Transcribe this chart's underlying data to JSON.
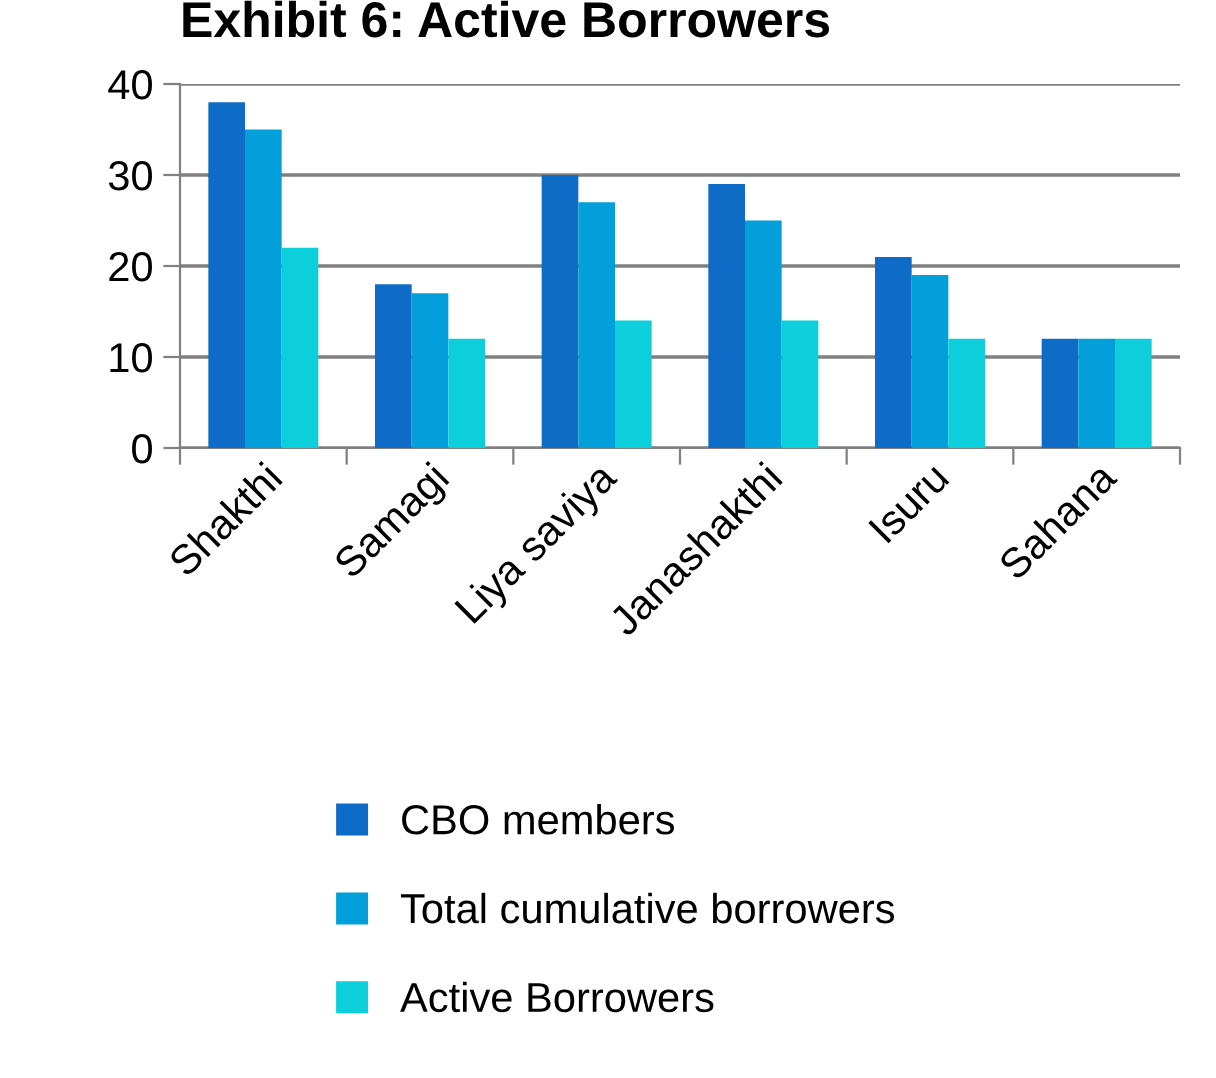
{
  "chart_data": {
    "type": "bar",
    "title": "Exhibit 6: Active Borrowers",
    "categories": [
      "Shakthi",
      "Samagi",
      "Liya saviya",
      "Janashakthi",
      "Isuru",
      "Sahana"
    ],
    "series": [
      {
        "name": "CBO members",
        "color": "#0f6cc6",
        "values": [
          38,
          18,
          30,
          29,
          21,
          12
        ]
      },
      {
        "name": "Total cumulative borrowers",
        "color": "#039fdb",
        "values": [
          35,
          17,
          27,
          25,
          19,
          12
        ]
      },
      {
        "name": "Active Borrowers",
        "color": "#0ccfdb",
        "values": [
          22,
          12,
          14,
          14,
          12,
          12
        ]
      }
    ],
    "ylim": [
      0,
      40
    ],
    "yticks": [
      0,
      10,
      20,
      30,
      40
    ],
    "grid": "y",
    "legend": "bottom"
  }
}
